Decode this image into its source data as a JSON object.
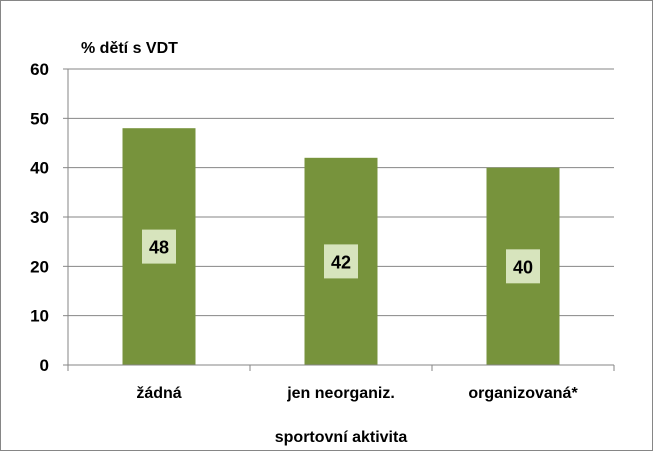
{
  "chart_data": {
    "type": "bar",
    "categories": [
      "žádná",
      "jen neorganiz.",
      "organizovaná*"
    ],
    "values": [
      48,
      42,
      40
    ],
    "data_labels": [
      "48",
      "42",
      "40"
    ],
    "title": "",
    "ylabel": "% dětí s VDT",
    "xlabel": "sportovní aktivita",
    "ylim": [
      0,
      60
    ],
    "yticks": [
      0,
      10,
      20,
      30,
      40,
      50,
      60
    ],
    "grid": true,
    "legend": "none",
    "colors": {
      "bar": "#77933C",
      "label_box": "#D7E4BD",
      "grid": "#868686",
      "axis": "#868686"
    }
  }
}
